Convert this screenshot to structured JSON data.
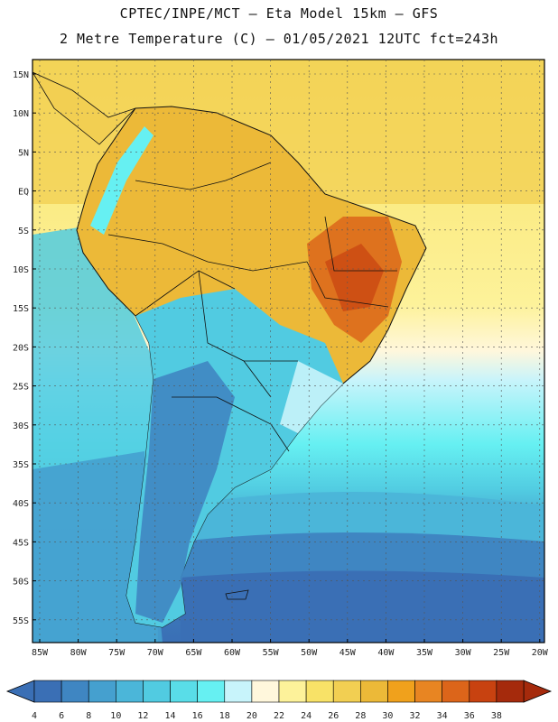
{
  "header": {
    "line1": "CPTEC/INPE/MCT –  Eta Model 15km – GFS",
    "line2": "2 Metre Temperature (C) – 01/05/2021 12UTC fct=243h"
  },
  "axes": {
    "lat_labels": [
      "15N",
      "10N",
      "5N",
      "EQ",
      "5S",
      "10S",
      "15S",
      "20S",
      "25S",
      "30S",
      "35S",
      "40S",
      "45S",
      "50S",
      "55S"
    ],
    "lon_labels": [
      "85W",
      "80W",
      "75W",
      "70W",
      "65W",
      "60W",
      "55W",
      "50W",
      "45W",
      "40W",
      "35W",
      "30W",
      "25W",
      "20W"
    ]
  },
  "colorbar": {
    "values": [
      "4",
      "6",
      "8",
      "10",
      "12",
      "14",
      "16",
      "18",
      "20",
      "22",
      "24",
      "26",
      "28",
      "30",
      "32",
      "34",
      "36",
      "38"
    ],
    "colors": [
      "#3a6fb5",
      "#3f86c2",
      "#45a0cf",
      "#4bb6d9",
      "#51cbe1",
      "#59dde8",
      "#66f0f2",
      "#c8f4fb",
      "#fff7dc",
      "#fdf29a",
      "#f8e267",
      "#f2cf52",
      "#ecb938",
      "#f0a11c",
      "#e88522",
      "#dc651a",
      "#c84210",
      "#a52a0c"
    ]
  },
  "chart_data": {
    "type": "heatmap",
    "title": "2 Metre Temperature (C) – 01/05/2021 12UTC fct=243h",
    "source": "CPTEC/INPE/MCT –  Eta Model 15km – GFS",
    "x_range": [
      -85,
      -20
    ],
    "y_range": [
      -58,
      17
    ],
    "units": "C",
    "levels": [
      4,
      6,
      8,
      10,
      12,
      14,
      16,
      18,
      20,
      22,
      24,
      26,
      28,
      30,
      32,
      34,
      36,
      38
    ]
  }
}
